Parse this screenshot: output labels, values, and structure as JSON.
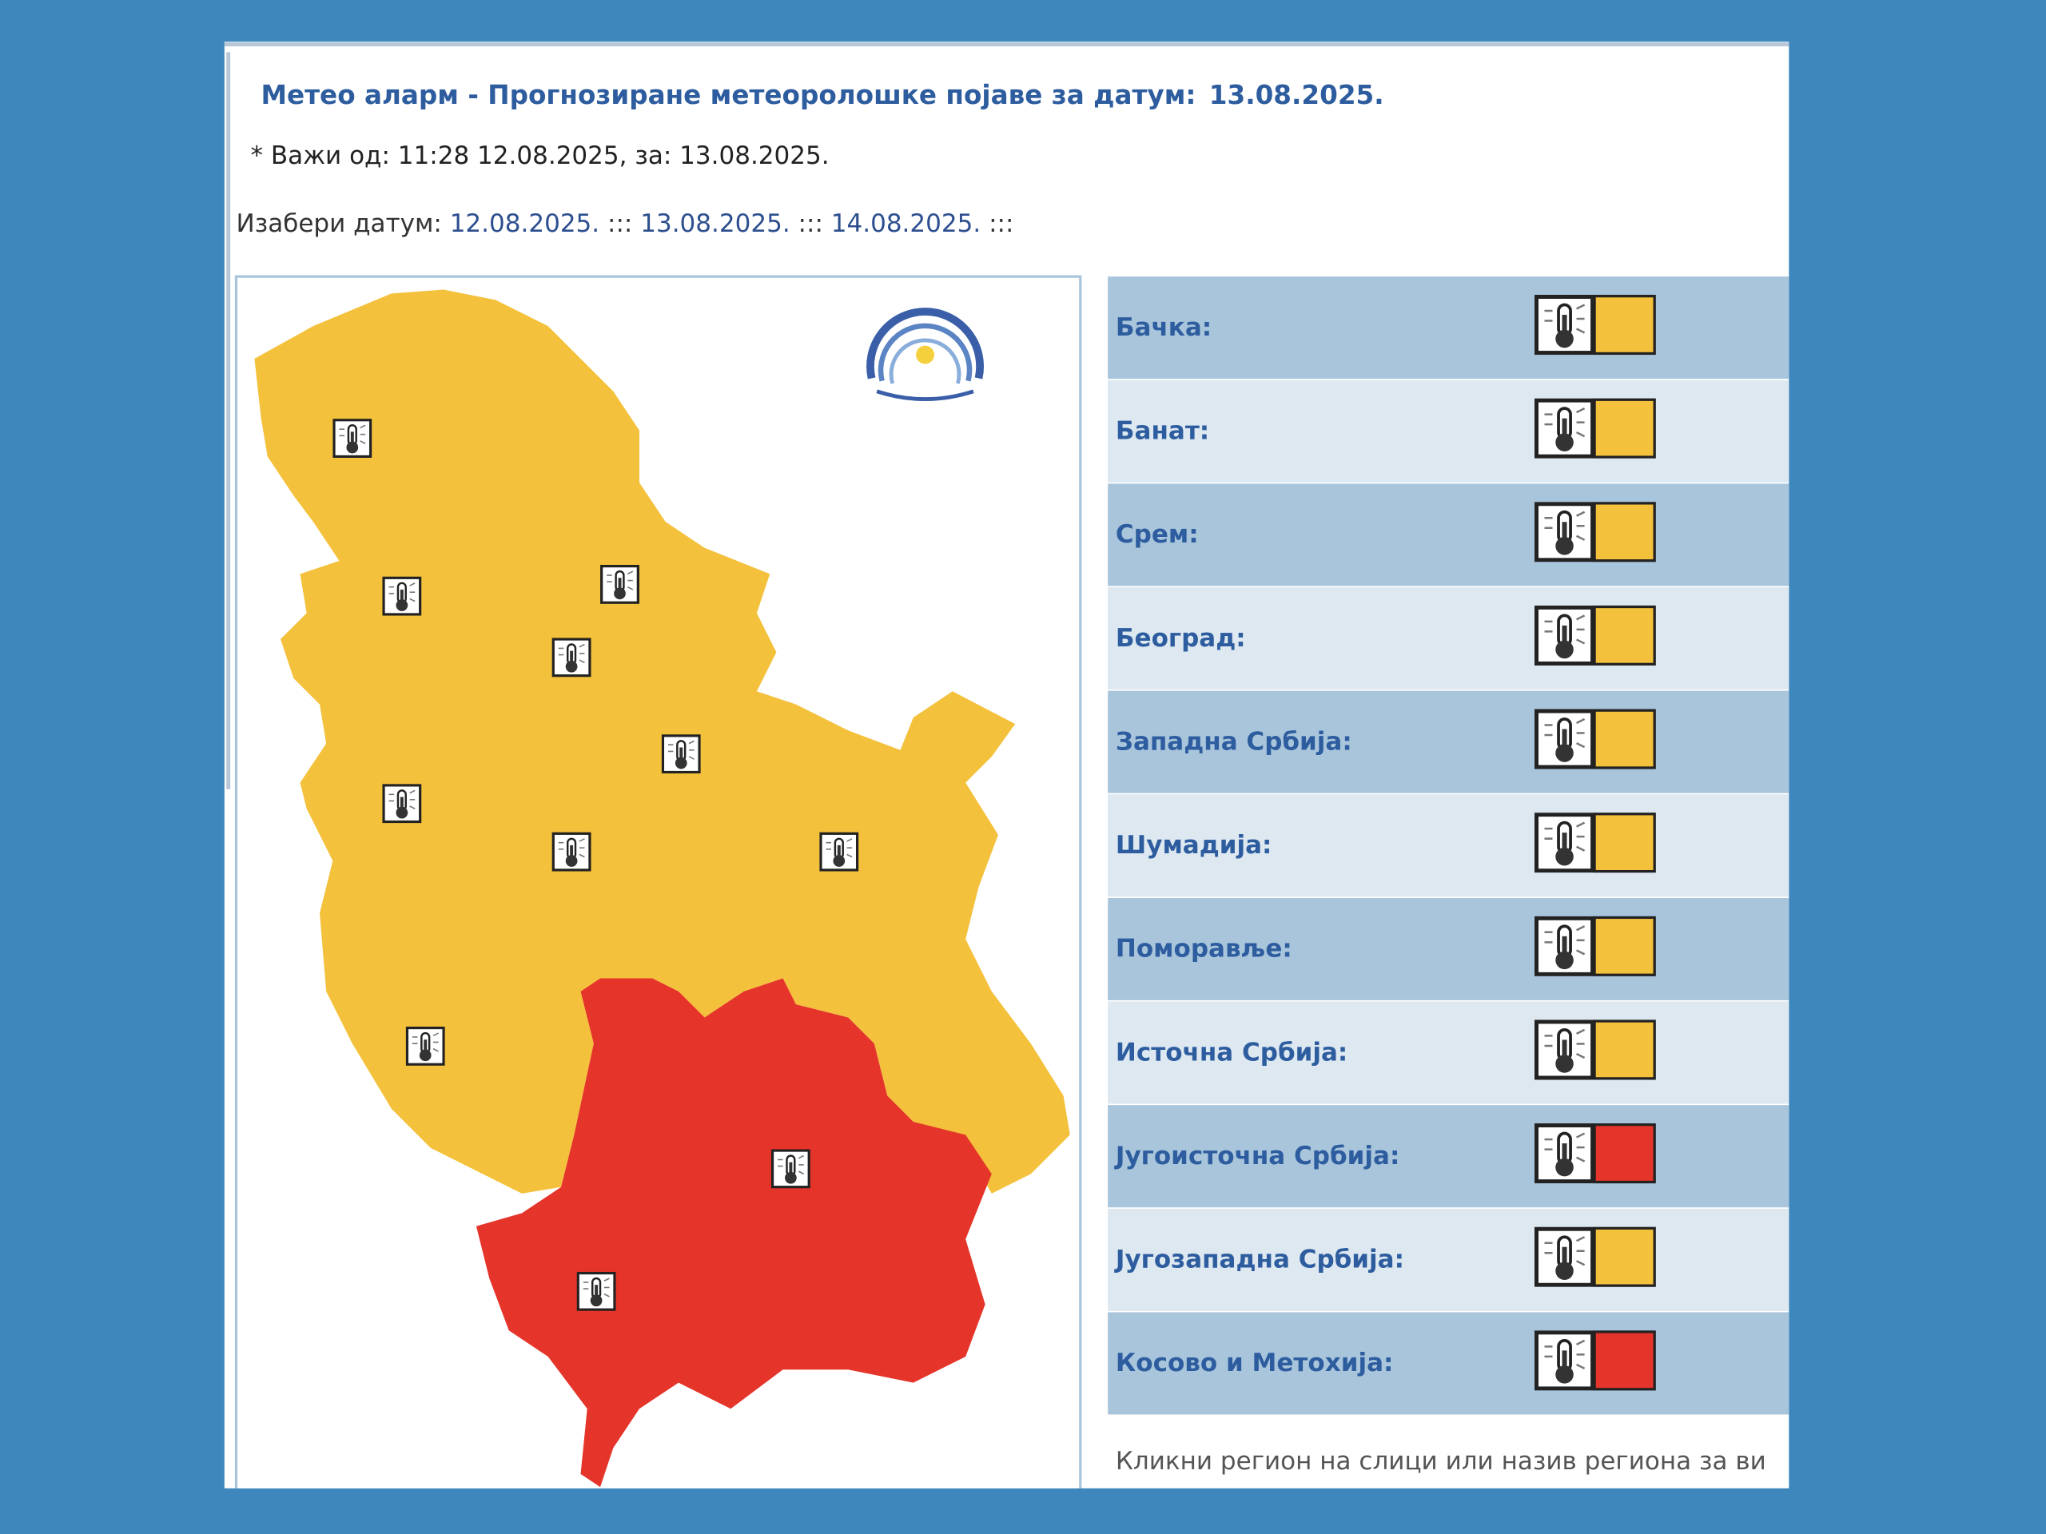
{
  "header": {
    "title": "Метео аларм - Прогнозиране метеоролошке појаве за датум:",
    "date": "13.08.2025.",
    "valid": "* Важи од: 11:28 12.08.2025, за: 13.08.2025."
  },
  "date_picker": {
    "label": "Изабери датум:",
    "dates": [
      "12.08.2025.",
      "13.08.2025.",
      "14.08.2025."
    ],
    "separator": ":::"
  },
  "regions": [
    {
      "name": "Бачка:",
      "color": "#f4c13c"
    },
    {
      "name": "Банат:",
      "color": "#f4c13c"
    },
    {
      "name": "Срем:",
      "color": "#f4c13c"
    },
    {
      "name": "Београд:",
      "color": "#f4c13c"
    },
    {
      "name": "Западна Србија:",
      "color": "#f4c13c"
    },
    {
      "name": "Шумадија:",
      "color": "#f4c13c"
    },
    {
      "name": "Поморавље:",
      "color": "#f4c13c"
    },
    {
      "name": "Источна Србија:",
      "color": "#f4c13c"
    },
    {
      "name": "Југоисточна Србија:",
      "color": "#e5352a"
    },
    {
      "name": "Југозападна Србија:",
      "color": "#f4c13c"
    },
    {
      "name": "Косово и Метохија:",
      "color": "#e5352a"
    }
  ],
  "footer": "Кликни регион на слици или назив региона за ви"
}
